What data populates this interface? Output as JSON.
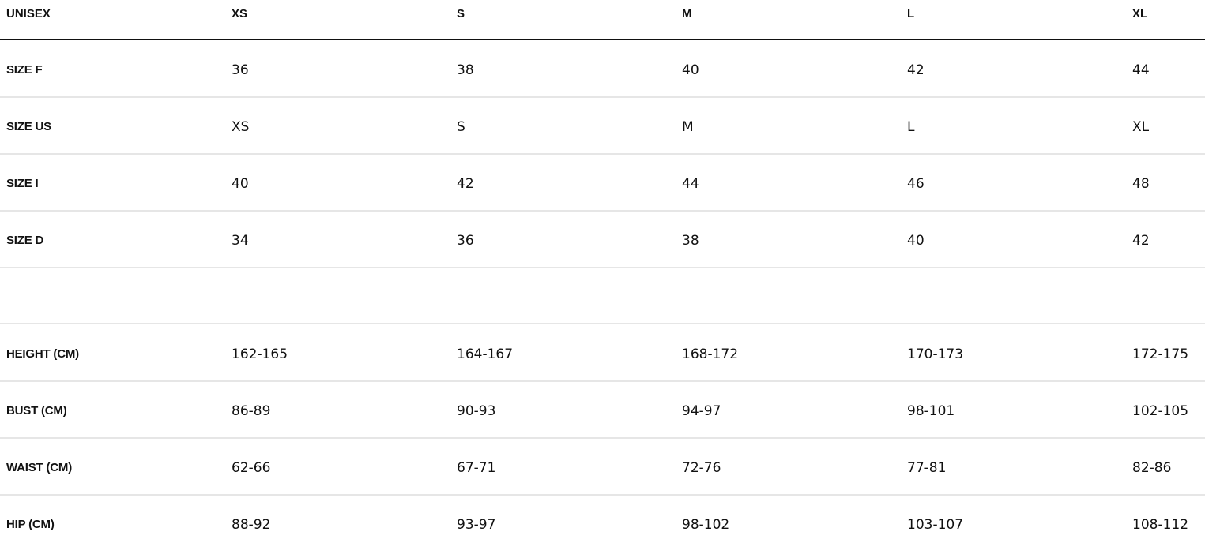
{
  "header": [
    "UNISEX",
    "XS",
    "S",
    "M",
    "L",
    "XL"
  ],
  "size_rows": [
    [
      "SIZE F",
      "36",
      "38",
      "40",
      "42",
      "44"
    ],
    [
      "SIZE US",
      "XS",
      "S",
      "M",
      "L",
      "XL"
    ],
    [
      "SIZE I",
      "40",
      "42",
      "44",
      "46",
      "48"
    ],
    [
      "SIZE D",
      "34",
      "36",
      "38",
      "40",
      "42"
    ]
  ],
  "measurement_rows": [
    [
      "HEIGHT (CM)",
      "162-165",
      "164-167",
      "168-172",
      "170-173",
      "172-175"
    ],
    [
      "BUST (CM)",
      "86-89",
      "90-93",
      "94-97",
      "98-101",
      "102-105"
    ],
    [
      "WAIST (CM)",
      "62-66",
      "67-71",
      "72-76",
      "77-81",
      "82-86"
    ],
    [
      "HIP (CM)",
      "88-92",
      "93-97",
      "98-102",
      "103-107",
      "108-112"
    ]
  ]
}
